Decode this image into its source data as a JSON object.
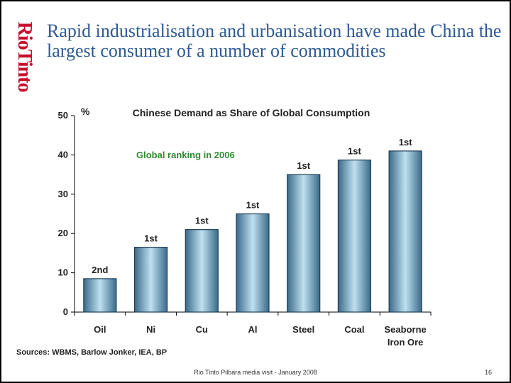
{
  "brand": {
    "logo_text": "RioTinto",
    "logo_color": "#c8102e"
  },
  "slide": {
    "title": "Rapid industrialisation and urbanisation have made China the largest consumer of a number of commodities",
    "source": "Sources: WBMS, Barlow Jonker, IEA, BP",
    "footer": "Rio Tinto Pilbara media visit - January 2008",
    "page_number": "16"
  },
  "chart_data": {
    "type": "bar",
    "title": "Chinese Demand as Share of Global Consumption",
    "ylabel": "%",
    "xlabel": "",
    "ylim": [
      0,
      50
    ],
    "yticks": [
      0,
      10,
      20,
      30,
      40,
      50
    ],
    "grid": false,
    "legend": "none",
    "categories": [
      "Oil",
      "Ni",
      "Cu",
      "Al",
      "Steel",
      "Coal",
      "Seaborne Iron Ore"
    ],
    "values": [
      8.5,
      16.5,
      21,
      25,
      35,
      38.7,
      41
    ],
    "data_labels": [
      "2nd",
      "1st",
      "1st",
      "1st",
      "1st",
      "1st",
      "1st"
    ],
    "annotation": "Global ranking in 2006",
    "colors": {
      "bar_dark": "#3a6b8a",
      "bar_light": "#bfe0ef",
      "annotation": "#2e8b2e",
      "text": "#222222"
    }
  }
}
